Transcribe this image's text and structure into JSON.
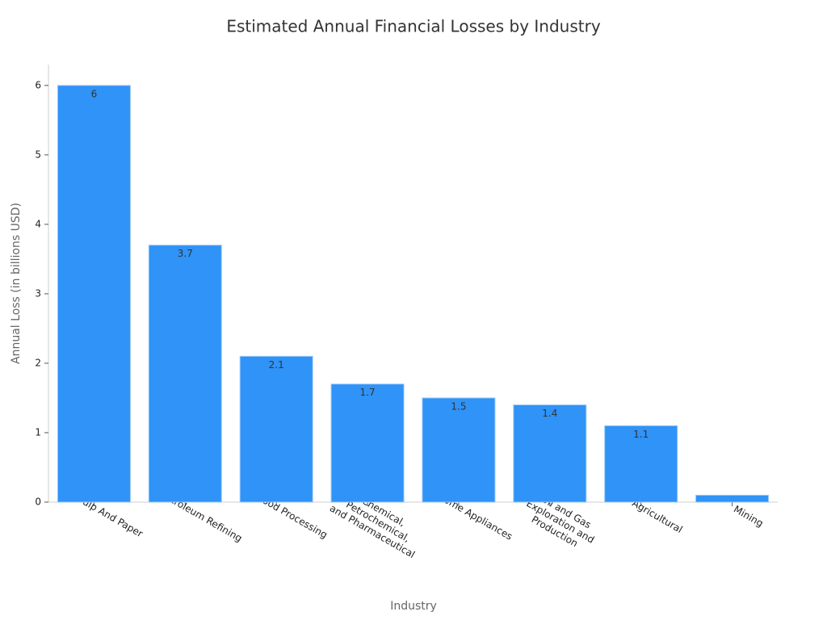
{
  "chart_data": {
    "type": "bar",
    "title": "Estimated Annual Financial Losses by Industry",
    "x_label": "Industry",
    "y_label": "Annual Loss (in billions USD)",
    "categories": [
      "Pulp And Paper",
      "Petroleum Refining",
      "Food Processing",
      "Chemical,\nPetrochemical,\nand Pharmaceutical",
      "Home Appliances",
      "Oil and Gas\nExploration and\nProduction",
      "Agricultural",
      "Mining"
    ],
    "values": [
      6,
      3.7,
      2.1,
      1.7,
      1.5,
      1.4,
      1.1,
      0.1
    ],
    "value_labels": [
      "6",
      "3.7",
      "2.1",
      "1.7",
      "1.5",
      "1.4",
      "1.1",
      null
    ],
    "color": "#2f93f7",
    "ylim": [
      0,
      6.3
    ],
    "yticks": [
      0,
      1,
      2,
      3,
      4,
      5,
      6
    ],
    "grid": false
  }
}
